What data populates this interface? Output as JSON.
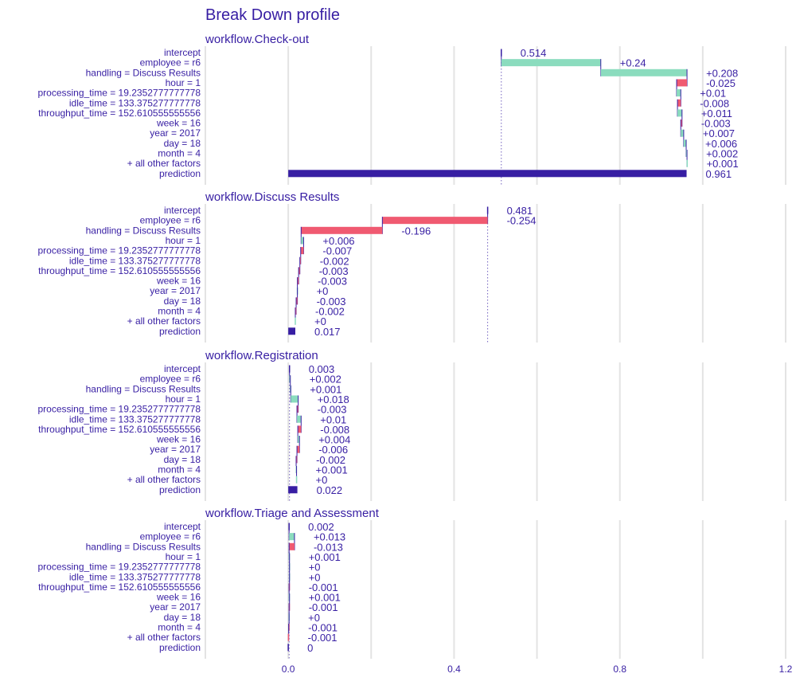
{
  "colors": {
    "text": "#371ea3",
    "positive": "#8bdcbe",
    "negative": "#f05a71",
    "prediction": "#371ea3",
    "grid": "#e3e3e3",
    "connector": "#371ea3"
  },
  "chart_data": {
    "type": "bar",
    "subtype": "break-down-waterfall",
    "title": "Break Down profile",
    "xlim": [
      -0.2,
      1.2
    ],
    "xticks": [
      0.0,
      0.4,
      0.8,
      1.2
    ],
    "xtick_labels": [
      "0.0",
      "0.4",
      "0.8",
      "1.2"
    ],
    "grid": true,
    "variables": [
      "intercept",
      "employee = r6",
      "handling = Discuss Results",
      "hour = 1",
      "processing_time = 19.2352777777778",
      "idle_time = 133.375277777778",
      "throughput_time = 152.610555555556",
      "week = 16",
      "year = 2017",
      "day = 18",
      "month = 4",
      "+ all other factors",
      "prediction"
    ],
    "panels": [
      {
        "title": "workflow.Check-out",
        "contributions": [
          0.514,
          0.24,
          0.208,
          -0.025,
          0.01,
          -0.008,
          0.011,
          -0.003,
          0.007,
          0.006,
          0.002,
          0.001,
          0.961
        ],
        "labels": [
          "0.514",
          "+0.24",
          "+0.208",
          "-0.025",
          "+0.01",
          "-0.008",
          "+0.011",
          "-0.003",
          "+0.007",
          "+0.006",
          "+0.002",
          "+0.001",
          "0.961"
        ]
      },
      {
        "title": "workflow.Discuss Results",
        "contributions": [
          0.481,
          -0.254,
          -0.196,
          0.006,
          -0.007,
          -0.002,
          -0.003,
          -0.003,
          0,
          -0.003,
          -0.002,
          0,
          0.017
        ],
        "labels": [
          "0.481",
          "-0.254",
          "-0.196",
          "+0.006",
          "-0.007",
          "-0.002",
          "-0.003",
          "-0.003",
          "+0",
          "-0.003",
          "-0.002",
          "+0",
          "0.017"
        ]
      },
      {
        "title": "workflow.Registration",
        "contributions": [
          0.003,
          0.002,
          0.001,
          0.018,
          -0.003,
          0.01,
          -0.008,
          0.004,
          -0.006,
          -0.002,
          0.001,
          0,
          0.022
        ],
        "labels": [
          "0.003",
          "+0.002",
          "+0.001",
          "+0.018",
          "-0.003",
          "+0.01",
          "-0.008",
          "+0.004",
          "-0.006",
          "-0.002",
          "+0.001",
          "+0",
          "0.022"
        ]
      },
      {
        "title": "workflow.Triage and Assessment",
        "contributions": [
          0.002,
          0.013,
          -0.013,
          0.001,
          0,
          0,
          -0.001,
          0.001,
          -0.001,
          0,
          -0.001,
          -0.001,
          0
        ],
        "labels": [
          "0.002",
          "+0.013",
          "-0.013",
          "+0.001",
          "+0",
          "+0",
          "-0.001",
          "+0.001",
          "-0.001",
          "+0",
          "-0.001",
          "-0.001",
          "0"
        ]
      }
    ]
  }
}
